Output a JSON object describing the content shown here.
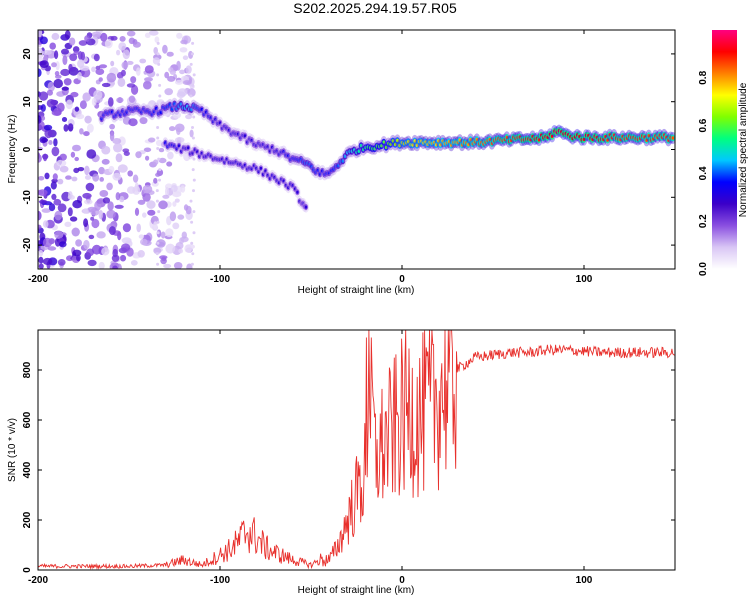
{
  "title": "S202.2025.294.19.57.R05",
  "chart_data": [
    {
      "type": "heatmap",
      "title": "S202.2025.294.19.57.R05",
      "xlabel": "Height of straight line (km)",
      "ylabel": "Frequency (Hz)",
      "xlim": [
        -200,
        150
      ],
      "ylim": [
        -25,
        25
      ],
      "xticks": [
        -200,
        -100,
        0,
        100
      ],
      "yticks": [
        -20,
        -10,
        0,
        10,
        20
      ],
      "colorbar": {
        "label": "Normalized spectral amplitude",
        "range": [
          0,
          1
        ],
        "ticks": [
          0.0,
          0.2,
          0.4,
          0.6,
          0.8
        ],
        "colors": [
          "#ffffff",
          "#d9c6f5",
          "#8a4fe0",
          "#3b00c8",
          "#0000ff",
          "#00c8ff",
          "#00ff80",
          "#80ff00",
          "#ffff00",
          "#ff8000",
          "#ff0000",
          "#ff0080"
        ]
      },
      "trace": {
        "x": [
          -165,
          -150,
          -135,
          -125,
          -118,
          -110,
          -100,
          -90,
          -80,
          -70,
          -60,
          -52,
          -45,
          -40,
          -35,
          -30,
          -25,
          -20,
          -10,
          0,
          20,
          40,
          60,
          80,
          85,
          90,
          100,
          120,
          150
        ],
        "freq": [
          7,
          8,
          8,
          9,
          9,
          8,
          5,
          3,
          1,
          0,
          -2,
          -3,
          -5,
          -5,
          -3,
          -1,
          0,
          0.5,
          1,
          1.5,
          1.5,
          1.5,
          2,
          2.5,
          4,
          3,
          2.5,
          2.5,
          2.5
        ],
        "amplitude": [
          0.35,
          0.35,
          0.35,
          0.4,
          0.45,
          0.35,
          0.3,
          0.3,
          0.3,
          0.3,
          0.35,
          0.4,
          0.35,
          0.35,
          0.4,
          0.45,
          0.5,
          0.55,
          0.6,
          0.7,
          0.75,
          0.8,
          0.85,
          0.9,
          0.95,
          0.9,
          0.9,
          0.85,
          0.85
        ]
      },
      "branch": {
        "x": [
          -130,
          -120,
          -110,
          -100,
          -90,
          -80,
          -70,
          -60,
          -55,
          -52
        ],
        "freq": [
          1,
          0,
          -1,
          -2,
          -3,
          -4,
          -6,
          -8,
          -11,
          -13
        ],
        "amplitude": [
          0.35,
          0.3,
          0.3,
          0.3,
          0.3,
          0.3,
          0.3,
          0.3,
          0.3,
          0.3
        ]
      },
      "scatter_region": {
        "x": [
          -200,
          -115
        ],
        "freq": [
          -25,
          25
        ],
        "amplitude": "low (~0.05-0.3)"
      }
    },
    {
      "type": "line",
      "xlabel": "Height of straight line (km)",
      "ylabel": "SNR (10 * v/v)",
      "xlim": [
        -200,
        150
      ],
      "ylim": [
        0,
        960
      ],
      "xticks": [
        -200,
        -100,
        0,
        100
      ],
      "yticks": [
        0,
        200,
        400,
        600,
        800
      ],
      "color": "#e8302c",
      "series": [
        {
          "name": "SNR",
          "x": [
            -200,
            -150,
            -130,
            -120,
            -110,
            -100,
            -95,
            -90,
            -85,
            -80,
            -75,
            -70,
            -60,
            -50,
            -45,
            -40,
            -35,
            -30,
            -25,
            -20,
            -18,
            -15,
            -10,
            -5,
            0,
            5,
            10,
            15,
            20,
            25,
            30,
            40,
            50,
            60,
            70,
            80,
            90,
            100,
            110,
            120,
            130,
            140,
            150
          ],
          "y": [
            15,
            15,
            20,
            40,
            20,
            60,
            80,
            110,
            160,
            130,
            90,
            70,
            40,
            20,
            40,
            40,
            100,
            200,
            300,
            400,
            900,
            450,
            500,
            550,
            600,
            650,
            600,
            650,
            700,
            760,
            800,
            850,
            860,
            870,
            870,
            880,
            880,
            875,
            870,
            870,
            870,
            870,
            870
          ]
        }
      ]
    }
  ]
}
